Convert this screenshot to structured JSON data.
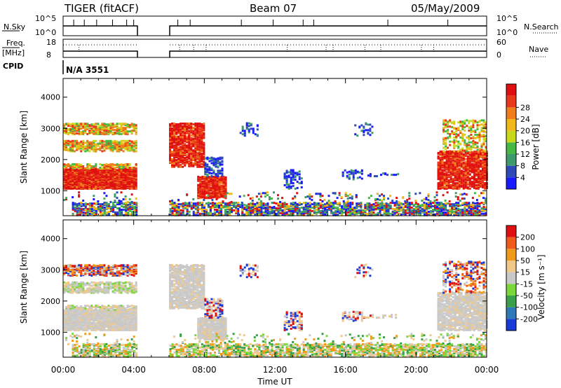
{
  "header": {
    "radar": "TIGER (fitACF)",
    "beam": "Beam 07",
    "date": "05/May/2009"
  },
  "strips": {
    "nsky_label": "N.Sky",
    "nsky_ticks": [
      "10^5",
      "10^0"
    ],
    "nsearch_label": "N.Search",
    "nsearch_ticks": [
      "10^5",
      "10^0"
    ],
    "freq_label_1": "Freq.",
    "freq_label_2": "[MHz]",
    "freq_ticks": [
      "18",
      "8"
    ],
    "nave_label": "Nave",
    "nave_ticks": [
      "60",
      "0"
    ],
    "cpid_label": "CPID",
    "cpid_value": "N/A 3551"
  },
  "chart_data": [
    {
      "type": "heatmap",
      "name": "power",
      "ylabel": "Slant Range [km]",
      "xlabel": "",
      "x_ticks": [
        "00:00",
        "04:00",
        "08:00",
        "12:00",
        "16:00",
        "20:00",
        "00:00"
      ],
      "y_ticks": [
        1000,
        2000,
        3000,
        4000
      ],
      "ylim": [
        200,
        4600
      ],
      "xlim_hours": [
        0,
        24
      ],
      "data_gap_hours": [
        4.2,
        6.0
      ],
      "colorbar": {
        "label": "Power [dB]",
        "ticks": [
          "4",
          "8",
          "12",
          "16",
          "20",
          "24",
          "28"
        ],
        "colors": [
          "#1a1aff",
          "#2e4ab8",
          "#3e9a6a",
          "#46b846",
          "#c8d81a",
          "#f0b81a",
          "#f07c1a",
          "#e83a1a",
          "#e01010"
        ]
      }
    },
    {
      "type": "heatmap",
      "name": "velocity",
      "ylabel": "Slant Range [km]",
      "xlabel": "Time UT",
      "x_ticks": [
        "00:00",
        "04:00",
        "08:00",
        "12:00",
        "16:00",
        "20:00",
        "00:00"
      ],
      "y_ticks": [
        1000,
        2000,
        3000,
        4000
      ],
      "ylim": [
        200,
        4600
      ],
      "xlim_hours": [
        0,
        24
      ],
      "data_gap_hours": [
        4.2,
        6.0
      ],
      "colorbar": {
        "label": "Velocity [m s⁻¹]",
        "ticks": [
          "200",
          "100",
          "50",
          "15",
          "-15",
          "-50",
          "-100",
          "-200"
        ],
        "colors": [
          "#1a3ad8",
          "#2e7ab8",
          "#3aa04a",
          "#7ad83a",
          "#c8c8c8",
          "#f0c88a",
          "#f09a1a",
          "#f05a1a",
          "#e01010"
        ]
      }
    }
  ]
}
